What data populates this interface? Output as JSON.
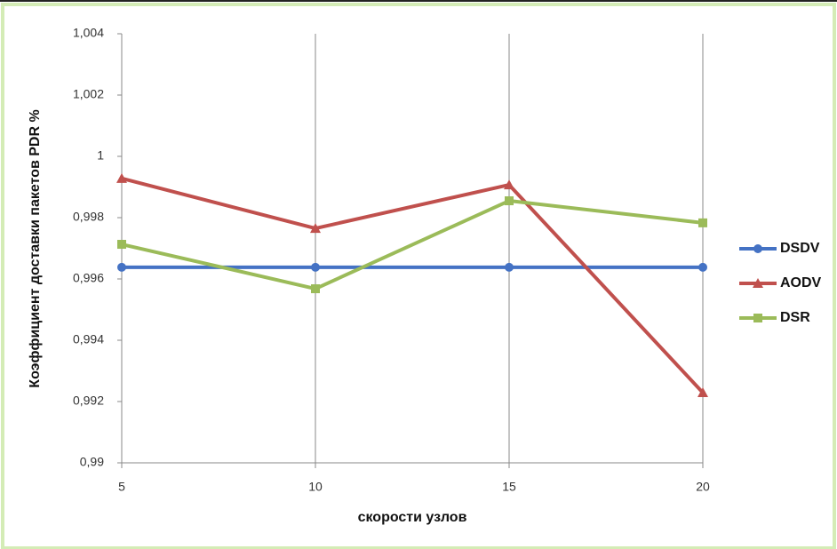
{
  "chart_data": {
    "type": "line",
    "x_label": "скорости узлов",
    "y_label": "Коэффициент доставки пакетов PDR %",
    "x": [
      5,
      10,
      15,
      20
    ],
    "xlim": [
      5,
      20
    ],
    "xticks": [
      5,
      10,
      15,
      20
    ],
    "ylim": [
      0.99,
      1.004
    ],
    "yticks": [
      {
        "value": 0.99,
        "label": "0,99"
      },
      {
        "value": 0.992,
        "label": "0,992"
      },
      {
        "value": 0.994,
        "label": "0,994"
      },
      {
        "value": 0.996,
        "label": "0,996"
      },
      {
        "value": 0.998,
        "label": "0,998"
      },
      1,
      {
        "value": 1.002,
        "label": "1,002"
      },
      {
        "value": 1.004,
        "label": "1,004"
      }
    ],
    "grid": "x",
    "legend": "right",
    "series": [
      {
        "name": "DSDV",
        "color": "#4472c4",
        "marker": "circle",
        "values": [
          0.99638,
          0.99638,
          0.99638,
          0.99638
        ]
      },
      {
        "name": "AODV",
        "color": "#c0504d",
        "marker": "triangle",
        "values": [
          0.99928,
          0.99765,
          0.99907,
          0.99229
        ]
      },
      {
        "name": "DSR",
        "color": "#9bbb59",
        "marker": "square",
        "values": [
          0.99713,
          0.99568,
          0.99855,
          0.99783
        ]
      }
    ]
  }
}
